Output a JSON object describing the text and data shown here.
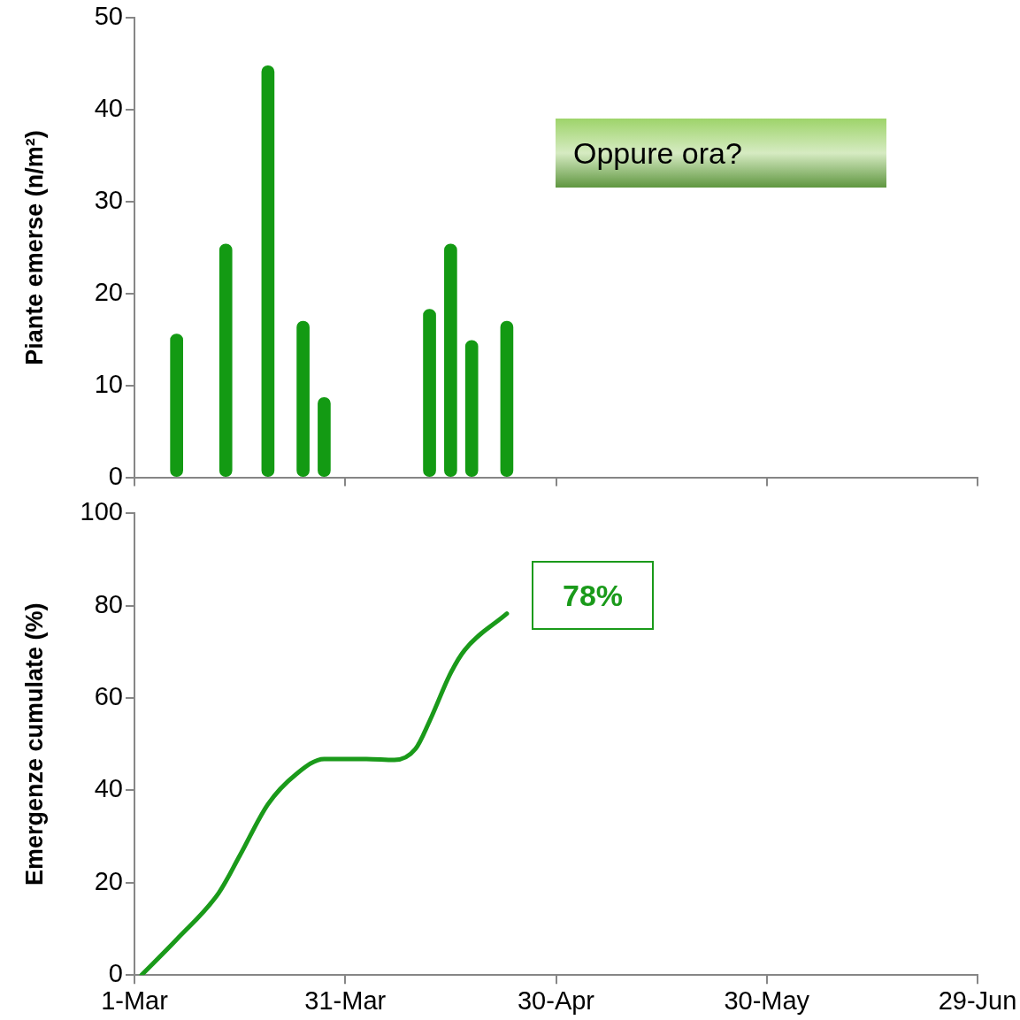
{
  "chart_data": [
    {
      "type": "bar",
      "ylabel": "Piante emerse (n/m²)",
      "x": [
        "--03-07",
        "--03-14",
        "--03-20",
        "--03-25",
        "--03-28",
        "--04-12",
        "--04-15",
        "--04-18",
        "--04-23"
      ],
      "values": [
        15.6,
        25.4,
        44.8,
        17,
        8.7,
        18.3,
        25.4,
        14.9,
        17
      ],
      "color": "#139a13",
      "xlim": [
        "--03-01",
        "--06-29"
      ],
      "xticks": [
        {
          "value": "--03-01",
          "label": null
        },
        {
          "value": "--03-31",
          "label": null
        },
        {
          "value": "--04-30",
          "label": null
        },
        {
          "value": "--05-30",
          "label": null
        },
        {
          "value": "--06-29",
          "label": null
        }
      ],
      "ylim": [
        0,
        50
      ],
      "yticks": [
        0,
        10,
        20,
        30,
        40,
        50
      ],
      "tick_labels": "y",
      "grid": false,
      "legend": false,
      "annotations": [
        "Oppure ora?"
      ]
    },
    {
      "type": "line",
      "ylabel": "Emergenze cumulate (%)",
      "x": [
        "--03-02",
        "--03-07",
        "--03-13",
        "--03-16",
        "--03-20",
        "--03-24",
        "--03-28",
        "--04-03",
        "--04-07",
        "--04-10",
        "--04-12",
        "--04-15",
        "--04-17",
        "--04-23"
      ],
      "values": [
        0,
        7.7,
        17.8,
        25.9,
        37,
        43.5,
        46.8,
        46.8,
        46.6,
        49,
        55,
        65.4,
        70.4,
        78.3
      ],
      "color": "#1a9a1a",
      "marker": "none",
      "line_style": "solid",
      "xlim": [
        "--03-01",
        "--06-29"
      ],
      "xticks": [
        {
          "value": "--03-01",
          "label": "1-Mar"
        },
        {
          "value": "--03-31",
          "label": "31-Mar"
        },
        {
          "value": "--04-30",
          "label": "30-Apr"
        },
        {
          "value": "--05-30",
          "label": "30-May"
        },
        {
          "value": "--06-29",
          "label": "29-Jun"
        }
      ],
      "ylim": [
        0,
        100
      ],
      "yticks": [
        0,
        20,
        40,
        60,
        80,
        100
      ],
      "grid": false,
      "legend": false,
      "annotations": [
        "78%"
      ]
    }
  ]
}
